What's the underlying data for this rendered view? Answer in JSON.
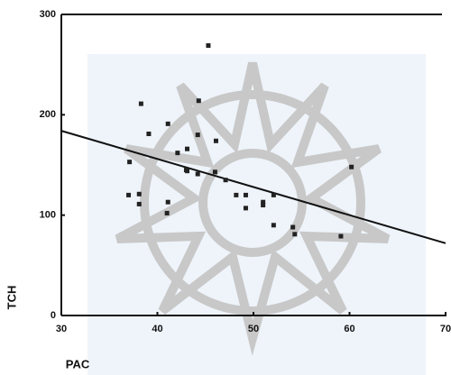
{
  "chart_data": {
    "type": "scatter",
    "xlabel": "PAC",
    "ylabel": "TCH",
    "x": [
      45.3,
      38.3,
      44.3,
      41.1,
      39.1,
      44.2,
      46.1,
      42.1,
      43.1,
      37.1,
      43.0,
      44.2,
      46.0,
      47.1,
      43.1,
      60.2,
      37.0,
      38.1,
      38.1,
      41.1,
      41.0,
      48.2,
      49.2,
      49.2,
      51.0,
      51.0,
      52.1,
      52.1,
      54.1,
      54.3,
      59.1
    ],
    "y": [
      269,
      211,
      214,
      191,
      181,
      180,
      174,
      162,
      166,
      153,
      145,
      141,
      143,
      135,
      144,
      148,
      120,
      121,
      111,
      113,
      102,
      120,
      120,
      107,
      113,
      110,
      120,
      90,
      88,
      81,
      79
    ],
    "color": "#222222",
    "trend_line": {
      "x": [
        30,
        70
      ],
      "y": [
        184,
        72
      ],
      "color": "#111111"
    },
    "xlim": [
      30,
      70
    ],
    "ylim": [
      0,
      300
    ],
    "xticks": [
      30,
      40,
      50,
      60,
      70
    ],
    "yticks": [
      0,
      100,
      200,
      300
    ]
  }
}
